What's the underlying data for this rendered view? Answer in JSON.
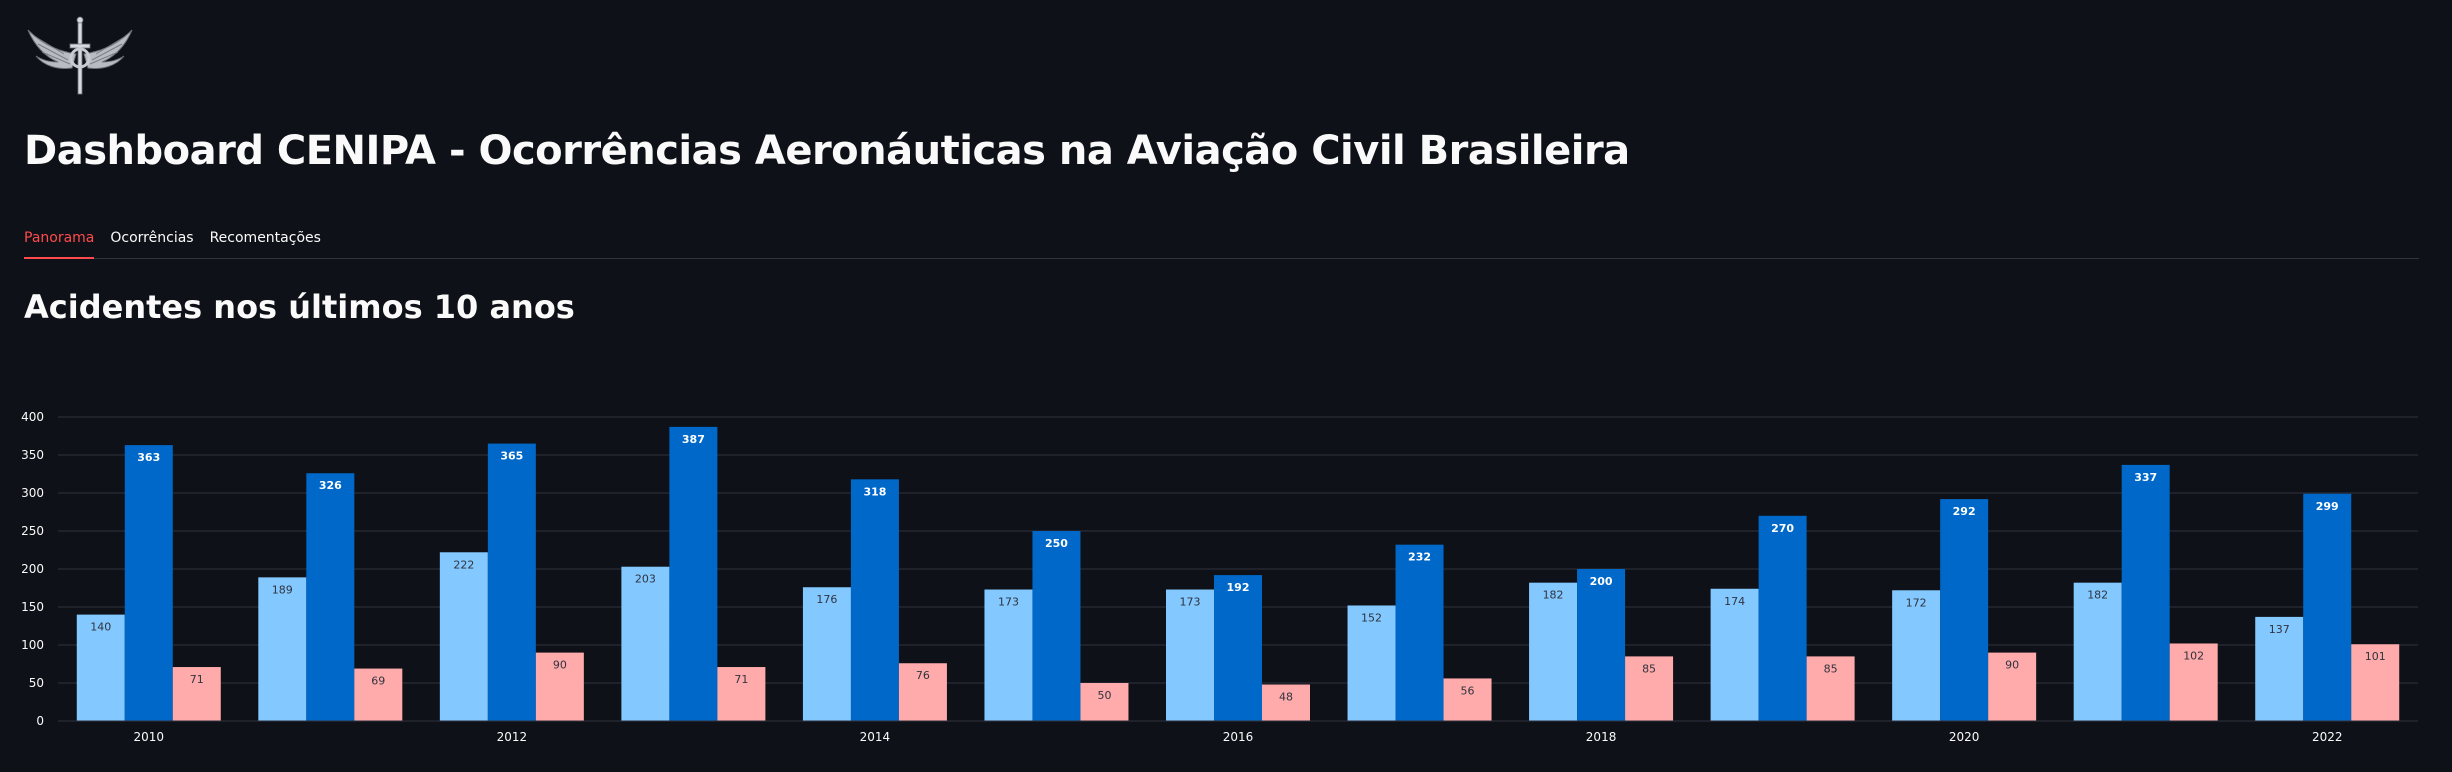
{
  "app": {
    "title": "Dashboard CENIPA - Ocorrências Aeronáuticas na Aviação Civil Brasileira",
    "logo_icon": "air-force-wings-emblem-icon"
  },
  "tabs": [
    {
      "label": "Panorama",
      "active": true
    },
    {
      "label": "Ocorrências",
      "active": false
    },
    {
      "label": "Recomentações",
      "active": false
    }
  ],
  "section": {
    "title": "Acidentes nos últimos 10 anos"
  },
  "colors": {
    "accent": "#ff4b4b",
    "series_light": "#83c9ff",
    "series_dark": "#0068c9",
    "series_pink": "#ffabab",
    "grid": "#31333f",
    "tick_text": "#fafafa"
  },
  "chart_data": {
    "type": "bar",
    "title": "",
    "xlabel": "",
    "ylabel": "",
    "ylim": [
      0,
      400
    ],
    "yticks": [
      0,
      50,
      100,
      150,
      200,
      250,
      300,
      350,
      400
    ],
    "categories": [
      "2010",
      "2011",
      "2012",
      "2013",
      "2014",
      "2015",
      "2016",
      "2017",
      "2018",
      "2019",
      "2020",
      "2021",
      "2022"
    ],
    "xtick_labels": [
      "2010",
      "",
      "2012",
      "",
      "2014",
      "",
      "2016",
      "",
      "2018",
      "",
      "2020",
      "",
      "2022"
    ],
    "series": [
      {
        "name": "series_1",
        "color": "#83c9ff",
        "label_color": "#31333f",
        "label_bold": false,
        "values": [
          140,
          189,
          222,
          203,
          176,
          173,
          173,
          152,
          182,
          174,
          172,
          182,
          137
        ]
      },
      {
        "name": "series_2",
        "color": "#0068c9",
        "label_color": "#ffffff",
        "label_bold": true,
        "values": [
          363,
          326,
          365,
          387,
          318,
          250,
          192,
          232,
          200,
          270,
          292,
          337,
          299
        ]
      },
      {
        "name": "series_3",
        "color": "#ffabab",
        "label_color": "#31333f",
        "label_bold": false,
        "values": [
          71,
          69,
          90,
          71,
          76,
          50,
          48,
          56,
          85,
          85,
          90,
          102,
          101
        ]
      }
    ]
  }
}
